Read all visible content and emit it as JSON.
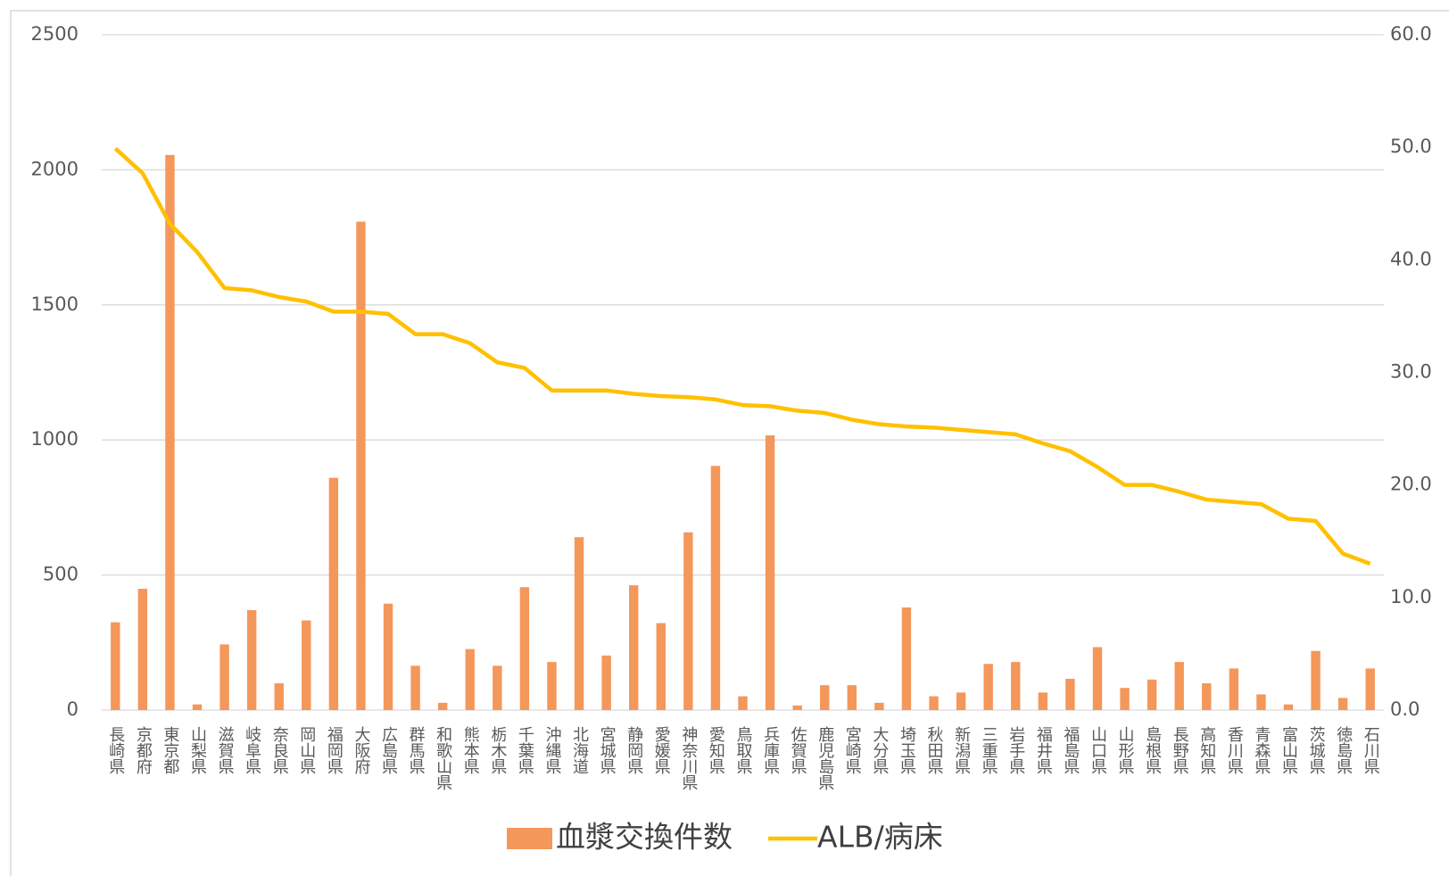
{
  "chart_data": {
    "type": "bar_line",
    "categories": [
      "長崎県",
      "京都府",
      "東京都",
      "山梨県",
      "滋賀県",
      "岐阜県",
      "奈良県",
      "岡山県",
      "福岡県",
      "大阪府",
      "広島県",
      "群馬県",
      "和歌山県",
      "熊本県",
      "栃木県",
      "千葉県",
      "沖縄県",
      "北海道",
      "宮城県",
      "静岡県",
      "愛媛県",
      "神奈川県",
      "愛知県",
      "鳥取県",
      "兵庫県",
      "佐賀県",
      "鹿児島県",
      "宮崎県",
      "大分県",
      "埼玉県",
      "秋田県",
      "新潟県",
      "三重県",
      "岩手県",
      "福井県",
      "福島県",
      "山口県",
      "山形県",
      "島根県",
      "長野県",
      "高知県",
      "香川県",
      "青森県",
      "富山県",
      "茨城県",
      "徳島県",
      "石川県"
    ],
    "series": [
      {
        "name": "血漿交換件数",
        "type": "bar",
        "color": "#F4975A",
        "values": [
          325,
          449,
          2055,
          21,
          243,
          370,
          99,
          332,
          860,
          1808,
          394,
          164,
          27,
          226,
          164,
          455,
          178,
          640,
          202,
          462,
          322,
          658,
          904,
          51,
          1017,
          17,
          92,
          92,
          27,
          380,
          51,
          65,
          171,
          178,
          65,
          116,
          233,
          82,
          113,
          178,
          99,
          154,
          58,
          21,
          219,
          45,
          154
        ]
      },
      {
        "name": "ALB/病床",
        "type": "line",
        "axis": "y2",
        "color": "#FFC000",
        "values": [
          49.9,
          47.7,
          43.2,
          40.7,
          37.5,
          37.3,
          36.7,
          36.3,
          35.4,
          35.4,
          35.2,
          33.4,
          33.4,
          32.6,
          30.9,
          30.4,
          28.4,
          28.4,
          28.4,
          28.1,
          27.9,
          27.8,
          27.6,
          27.1,
          27.0,
          26.6,
          26.4,
          25.8,
          25.4,
          25.2,
          25.1,
          24.9,
          24.7,
          24.5,
          23.7,
          23.0,
          21.6,
          20.0,
          20.0,
          19.4,
          18.7,
          18.5,
          18.3,
          17.0,
          16.8,
          13.9,
          13.0
        ]
      }
    ],
    "ylim": [
      0,
      2500
    ],
    "yticks": [
      0,
      500,
      1000,
      1500,
      2000,
      2500
    ],
    "y2lim": [
      0,
      60
    ],
    "y2ticks": [
      {
        "value": 0,
        "label": "0.0"
      },
      {
        "value": 10,
        "label": "10.0"
      },
      {
        "value": 20,
        "label": "20.0"
      },
      {
        "value": 30,
        "label": "30.0"
      },
      {
        "value": 40,
        "label": "40.0"
      },
      {
        "value": 50,
        "label": "50.0"
      },
      {
        "value": 60,
        "label": "60.0"
      }
    ],
    "grid": true,
    "legend": "bottom"
  }
}
